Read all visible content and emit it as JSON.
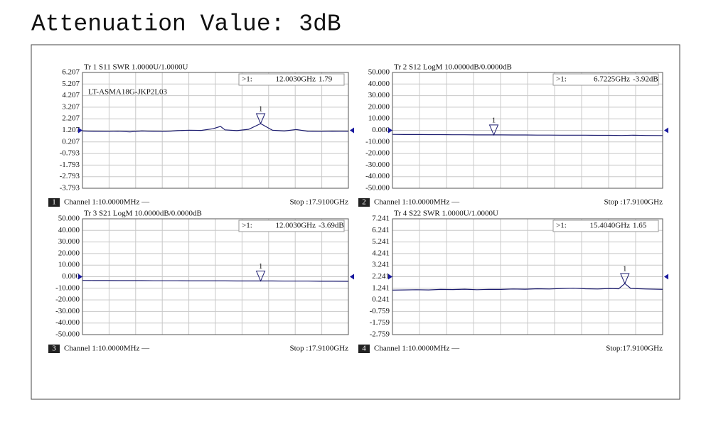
{
  "title": "Attenuation Value: 3dB",
  "chart_data": [
    {
      "type": "line",
      "title": "Tr 1  S11 SWR 1.0000U/1.0000U",
      "annotation": "LT-ASMA18G-JKP2L03",
      "xlim": [
        0.01,
        17.91
      ],
      "ylim": [
        -3.793,
        6.207
      ],
      "yticks": [
        6.207,
        5.207,
        4.207,
        3.207,
        2.207,
        1.207,
        0.207,
        -0.793,
        -1.793,
        -2.793,
        -3.793
      ],
      "x": [
        0.01,
        0.8,
        1.6,
        2.4,
        3.2,
        4.0,
        4.8,
        5.6,
        6.4,
        7.2,
        8.0,
        8.8,
        9.3,
        9.6,
        10.4,
        11.2,
        12.003,
        12.8,
        13.6,
        14.4,
        15.2,
        16.0,
        16.8,
        17.91
      ],
      "values": [
        1.15,
        1.12,
        1.1,
        1.13,
        1.08,
        1.15,
        1.12,
        1.1,
        1.18,
        1.22,
        1.2,
        1.35,
        1.55,
        1.25,
        1.18,
        1.3,
        1.79,
        1.22,
        1.15,
        1.28,
        1.12,
        1.1,
        1.14,
        1.12
      ],
      "color": "#1a1a6e",
      "grid": true,
      "marker": {
        "name": "1",
        "readout_label": ">1:",
        "x": 12.003,
        "x_label": "12.0030GHz",
        "value": 1.79,
        "value_label": "1.79"
      },
      "footer_index": "1",
      "start_label": "Channel 1:10.0000MHz —",
      "stop_label": "Stop :17.9100GHz"
    },
    {
      "type": "line",
      "title": "Tr 2  S12 LogM 10.0000dB/0.0000dB",
      "xlim": [
        0.01,
        17.91
      ],
      "ylim": [
        -50,
        50
      ],
      "yticks": [
        {
          "value": 50,
          "label": "50.000"
        },
        {
          "value": 40,
          "label": "40.000"
        },
        {
          "value": 30,
          "label": "30.000"
        },
        {
          "value": 20,
          "label": "20.000"
        },
        {
          "value": 10,
          "label": "10.000"
        },
        {
          "value": 0,
          "label": "0.000"
        },
        {
          "value": -10,
          "label": "-10.000"
        },
        {
          "value": -20,
          "label": "-20.000"
        },
        {
          "value": -30,
          "label": "-30.000"
        },
        {
          "value": -40,
          "label": "-40.000"
        },
        {
          "value": -50,
          "label": "-50.000"
        }
      ],
      "x": [
        0.01,
        0.8,
        1.6,
        2.4,
        3.2,
        4.0,
        4.8,
        5.6,
        6.4,
        6.7225,
        7.2,
        8.0,
        8.8,
        9.6,
        10.4,
        11.2,
        12.0,
        12.8,
        13.6,
        14.4,
        15.2,
        16.0,
        16.8,
        17.91
      ],
      "values": [
        -3.5,
        -3.6,
        -3.6,
        -3.7,
        -3.7,
        -3.8,
        -3.8,
        -3.9,
        -3.9,
        -3.92,
        -3.9,
        -4.0,
        -4.0,
        -4.1,
        -4.1,
        -4.2,
        -4.2,
        -4.2,
        -4.3,
        -4.3,
        -4.4,
        -4.2,
        -4.4,
        -4.5
      ],
      "color": "#1a1a6e",
      "grid": true,
      "marker": {
        "name": "1",
        "readout_label": ">1:",
        "x": 6.7225,
        "x_label": "6.7225GHz",
        "value": -3.92,
        "value_label": "-3.92dB"
      },
      "footer_index": "2",
      "start_label": "Channel 1:10.0000MHz —",
      "stop_label": "Stop :17.9100GHz"
    },
    {
      "type": "line",
      "title": "Tr 3  S21 LogM 10.0000dB/0.0000dB",
      "xlim": [
        0.01,
        17.91
      ],
      "ylim": [
        -50,
        50
      ],
      "yticks": [
        {
          "value": 50,
          "label": "50.000"
        },
        {
          "value": 40,
          "label": "40.000"
        },
        {
          "value": 30,
          "label": "30.000"
        },
        {
          "value": 20,
          "label": "20.000"
        },
        {
          "value": 10,
          "label": "10.000"
        },
        {
          "value": 0,
          "label": "0.000"
        },
        {
          "value": -10,
          "label": "-10.000"
        },
        {
          "value": -20,
          "label": "-20.000"
        },
        {
          "value": -30,
          "label": "-30.000"
        },
        {
          "value": -40,
          "label": "-40.000"
        },
        {
          "value": -50,
          "label": "-50.000"
        }
      ],
      "x": [
        0.01,
        0.8,
        1.6,
        2.4,
        3.2,
        4.0,
        4.8,
        5.6,
        6.4,
        7.2,
        8.0,
        8.8,
        9.3,
        9.6,
        10.4,
        11.2,
        12.003,
        12.8,
        13.6,
        14.4,
        15.2,
        16.0,
        16.8,
        17.91
      ],
      "values": [
        -3.2,
        -3.3,
        -3.3,
        -3.4,
        -3.4,
        -3.4,
        -3.5,
        -3.5,
        -3.5,
        -3.6,
        -3.6,
        -3.6,
        -3.6,
        -3.6,
        -3.7,
        -3.7,
        -3.69,
        -3.7,
        -3.8,
        -3.8,
        -3.8,
        -3.9,
        -3.9,
        -4.0
      ],
      "color": "#1a1a6e",
      "grid": true,
      "marker": {
        "name": "1",
        "readout_label": ">1:",
        "x": 12.003,
        "x_label": "12.0030GHz",
        "value": -3.69,
        "value_label": "-3.69dB"
      },
      "footer_index": "3",
      "start_label": "Channel 1:10.0000MHz —",
      "stop_label": "Stop :17.9100GHz"
    },
    {
      "type": "line",
      "title": "Tr 4  S22 SWR 1.0000U/1.0000U",
      "xlim": [
        0.01,
        17.91
      ],
      "ylim": [
        -2.759,
        7.241
      ],
      "yticks": [
        7.241,
        6.241,
        5.241,
        4.241,
        3.241,
        2.241,
        1.241,
        0.241,
        -0.759,
        -1.759,
        -2.759
      ],
      "x": [
        0.01,
        0.8,
        1.6,
        2.4,
        3.2,
        4.0,
        4.8,
        5.6,
        6.4,
        7.2,
        8.0,
        8.8,
        9.6,
        10.4,
        11.2,
        12.0,
        12.8,
        13.6,
        14.4,
        15.0,
        15.404,
        15.8,
        16.8,
        17.91
      ],
      "values": [
        1.08,
        1.1,
        1.12,
        1.1,
        1.14,
        1.13,
        1.16,
        1.12,
        1.15,
        1.14,
        1.18,
        1.16,
        1.2,
        1.18,
        1.22,
        1.25,
        1.2,
        1.18,
        1.22,
        1.2,
        1.65,
        1.22,
        1.18,
        1.15
      ],
      "color": "#1a1a6e",
      "grid": true,
      "marker": {
        "name": "1",
        "readout_label": ">1:",
        "x": 15.404,
        "x_label": "15.4040GHz",
        "value": 1.65,
        "value_label": "1.65"
      },
      "footer_index": "4",
      "start_label": "Channel 1:10.0000MHz —",
      "stop_label": "Stop:17.9100GHz"
    }
  ]
}
